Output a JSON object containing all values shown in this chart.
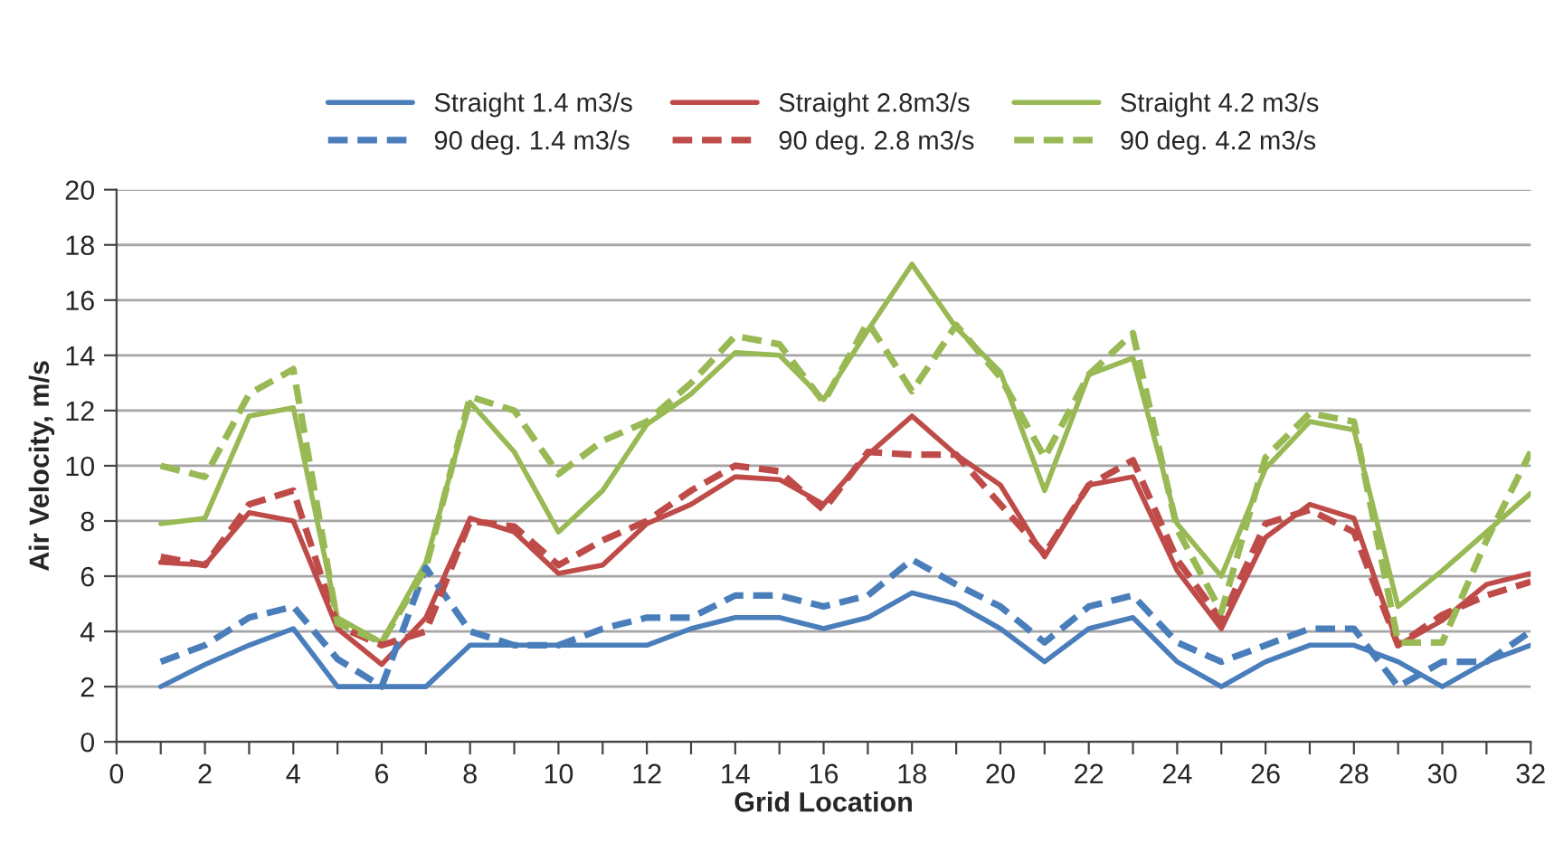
{
  "chart_data": {
    "type": "line",
    "xlabel": "Grid Location",
    "ylabel": "Air Velocity, m/s",
    "x": [
      1,
      2,
      3,
      4,
      5,
      6,
      7,
      8,
      9,
      10,
      11,
      12,
      13,
      14,
      15,
      16,
      17,
      18,
      19,
      20,
      21,
      22,
      23,
      24,
      25,
      26,
      27,
      28,
      29,
      30,
      31,
      32
    ],
    "series": [
      {
        "name": "Straight 1.4 m3/s",
        "color": "#4a7ebb",
        "line_style": "solid",
        "values": [
          2.0,
          2.8,
          3.5,
          4.1,
          2.0,
          2.0,
          2.0,
          3.5,
          3.5,
          3.5,
          3.5,
          3.5,
          4.1,
          4.5,
          4.5,
          4.1,
          4.5,
          5.4,
          5.0,
          4.1,
          2.9,
          4.1,
          4.5,
          2.9,
          2.0,
          2.9,
          3.5,
          3.5,
          2.9,
          2.0,
          2.9,
          3.5
        ]
      },
      {
        "name": "Straight 2.8m3/s",
        "color": "#be4b48",
        "line_style": "solid",
        "values": [
          6.5,
          6.4,
          8.3,
          8.0,
          4.1,
          2.8,
          4.5,
          8.1,
          7.6,
          6.1,
          6.4,
          7.9,
          8.6,
          9.6,
          9.5,
          8.6,
          10.4,
          11.8,
          10.4,
          9.3,
          6.7,
          9.3,
          9.6,
          6.2,
          4.1,
          7.4,
          8.6,
          8.1,
          3.5,
          4.4,
          5.7,
          6.1
        ]
      },
      {
        "name": "Straight 4.2 m3/s",
        "color": "#98b954",
        "line_style": "solid",
        "values": [
          7.9,
          8.1,
          11.8,
          12.1,
          4.5,
          3.6,
          6.5,
          12.3,
          10.5,
          7.6,
          9.1,
          11.5,
          12.6,
          14.1,
          14.0,
          12.4,
          14.9,
          17.3,
          15.0,
          13.4,
          9.1,
          13.3,
          13.9,
          7.9,
          6.0,
          9.9,
          11.6,
          11.3,
          4.9,
          6.2,
          7.6,
          9.0
        ]
      },
      {
        "name": "90 deg. 1.4 m3/s",
        "color": "#4a7ebb",
        "line_style": "dashed",
        "values": [
          2.9,
          3.5,
          4.5,
          4.9,
          3.0,
          2.0,
          6.3,
          4.0,
          3.5,
          3.5,
          4.1,
          4.5,
          4.5,
          5.3,
          5.3,
          4.9,
          5.3,
          6.6,
          5.7,
          4.9,
          3.6,
          4.9,
          5.3,
          3.6,
          2.9,
          3.5,
          4.1,
          4.1,
          2.0,
          2.9,
          2.9,
          4.0
        ]
      },
      {
        "name": "90 deg. 2.8 m3/s",
        "color": "#be4b48",
        "line_style": "dashed",
        "values": [
          6.7,
          6.4,
          8.6,
          9.1,
          4.2,
          3.5,
          4.0,
          8.0,
          7.8,
          6.4,
          7.3,
          8.0,
          9.1,
          10.0,
          9.8,
          8.4,
          10.5,
          10.4,
          10.4,
          8.6,
          6.8,
          9.3,
          10.2,
          6.6,
          4.4,
          7.9,
          8.4,
          7.6,
          3.5,
          4.6,
          5.3,
          5.8
        ]
      },
      {
        "name": "90 deg. 4.2 m3/s",
        "color": "#98b954",
        "line_style": "dashed",
        "values": [
          10.0,
          9.6,
          12.6,
          13.5,
          4.3,
          3.6,
          6.3,
          12.5,
          12.0,
          9.7,
          10.9,
          11.6,
          13.0,
          14.7,
          14.4,
          12.3,
          15.2,
          12.7,
          15.1,
          13.2,
          10.3,
          13.3,
          14.8,
          7.7,
          4.7,
          10.3,
          11.9,
          11.6,
          3.6,
          3.6,
          7.3,
          10.5
        ]
      }
    ],
    "xlim": [
      0,
      32
    ],
    "ylim": [
      0,
      20
    ],
    "xticks": [
      0,
      {
        "value": 1,
        "label": null
      },
      2,
      {
        "value": 3,
        "label": null
      },
      4,
      {
        "value": 5,
        "label": null
      },
      6,
      {
        "value": 7,
        "label": null
      },
      8,
      {
        "value": 9,
        "label": null
      },
      10,
      {
        "value": 11,
        "label": null
      },
      12,
      {
        "value": 13,
        "label": null
      },
      14,
      {
        "value": 15,
        "label": null
      },
      16,
      {
        "value": 17,
        "label": null
      },
      18,
      {
        "value": 19,
        "label": null
      },
      20,
      {
        "value": 21,
        "label": null
      },
      22,
      {
        "value": 23,
        "label": null
      },
      24,
      {
        "value": 25,
        "label": null
      },
      26,
      {
        "value": 27,
        "label": null
      },
      28,
      {
        "value": 29,
        "label": null
      },
      30,
      {
        "value": 31,
        "label": null
      },
      32
    ],
    "yticks": [
      0,
      2,
      4,
      6,
      8,
      10,
      12,
      14,
      16,
      18,
      20
    ],
    "grid": "y",
    "legend": "top",
    "marker": "none"
  }
}
